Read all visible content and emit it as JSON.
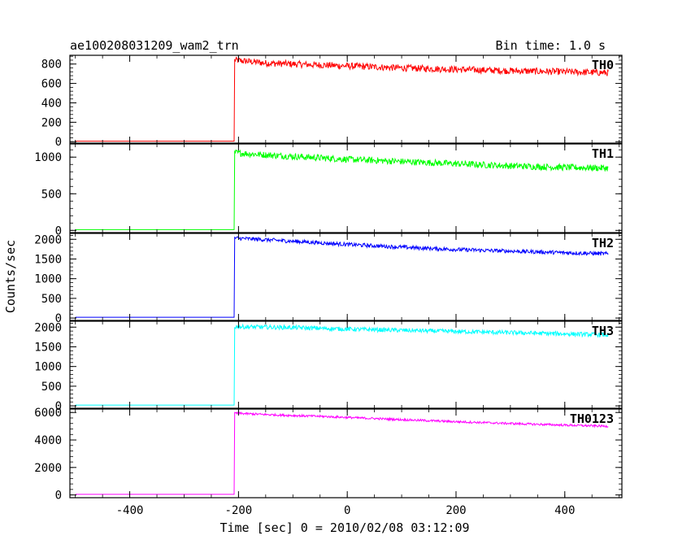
{
  "chart_data": {
    "type": "line",
    "title": "ae100208031209_wam2_trn",
    "bin_time": "Bin time: 1.0 s",
    "xlabel": "Time [sec] 0 = 2010/02/08 03:12:09",
    "ylabel": "Counts/sec",
    "xlim": [
      -510,
      505
    ],
    "x_ticks": [
      -400,
      -200,
      0,
      200,
      400
    ],
    "grid": false,
    "series": [
      {
        "name": "TH0",
        "color": "#ff0000",
        "ylim": [
          -15,
          890
        ],
        "y_ticks": [
          0,
          200,
          400,
          600,
          800
        ],
        "baseline": 5,
        "onset_x": -208,
        "x": [
          -500,
          -208,
          -207,
          -150,
          -100,
          -50,
          0,
          100,
          200,
          300,
          400,
          480
        ],
        "y": [
          5,
          5,
          840,
          810,
          800,
          790,
          780,
          760,
          745,
          730,
          720,
          710
        ],
        "noise": 35
      },
      {
        "name": "TH1",
        "color": "#00ff00",
        "ylim": [
          -30,
          1180
        ],
        "y_ticks": [
          0,
          500,
          1000
        ],
        "baseline": 10,
        "onset_x": -208,
        "x": [
          -500,
          -208,
          -207,
          -150,
          -100,
          -50,
          0,
          100,
          200,
          300,
          400,
          480
        ],
        "y": [
          10,
          10,
          1060,
          1030,
          1010,
          990,
          970,
          940,
          910,
          880,
          860,
          850
        ],
        "noise": 45
      },
      {
        "name": "TH2",
        "color": "#0000ff",
        "ylim": [
          -60,
          2150
        ],
        "y_ticks": [
          0,
          500,
          1000,
          1500,
          2000
        ],
        "baseline": 20,
        "onset_x": -208,
        "x": [
          -500,
          -208,
          -207,
          -150,
          -100,
          -50,
          0,
          100,
          200,
          300,
          400,
          480
        ],
        "y": [
          20,
          20,
          2030,
          1990,
          1950,
          1910,
          1870,
          1800,
          1740,
          1700,
          1660,
          1630
        ],
        "noise": 50
      },
      {
        "name": "TH3",
        "color": "#00ffff",
        "ylim": [
          -60,
          2150
        ],
        "y_ticks": [
          0,
          500,
          1000,
          1500,
          2000
        ],
        "baseline": 20,
        "onset_x": -208,
        "x": [
          -500,
          -208,
          -207,
          -150,
          -100,
          -50,
          0,
          100,
          200,
          300,
          400,
          480
        ],
        "y": [
          20,
          20,
          2010,
          2000,
          1990,
          1970,
          1950,
          1920,
          1890,
          1860,
          1830,
          1800
        ],
        "noise": 55
      },
      {
        "name": "TH0123",
        "color": "#ff00ff",
        "ylim": [
          -200,
          6250
        ],
        "y_ticks": [
          0,
          2000,
          4000,
          6000
        ],
        "baseline": 40,
        "onset_x": -208,
        "x": [
          -500,
          -208,
          -207,
          -150,
          -100,
          -50,
          0,
          100,
          200,
          300,
          400,
          480
        ],
        "y": [
          40,
          40,
          5950,
          5850,
          5780,
          5720,
          5640,
          5480,
          5330,
          5200,
          5080,
          5000
        ],
        "noise": 80
      }
    ]
  }
}
